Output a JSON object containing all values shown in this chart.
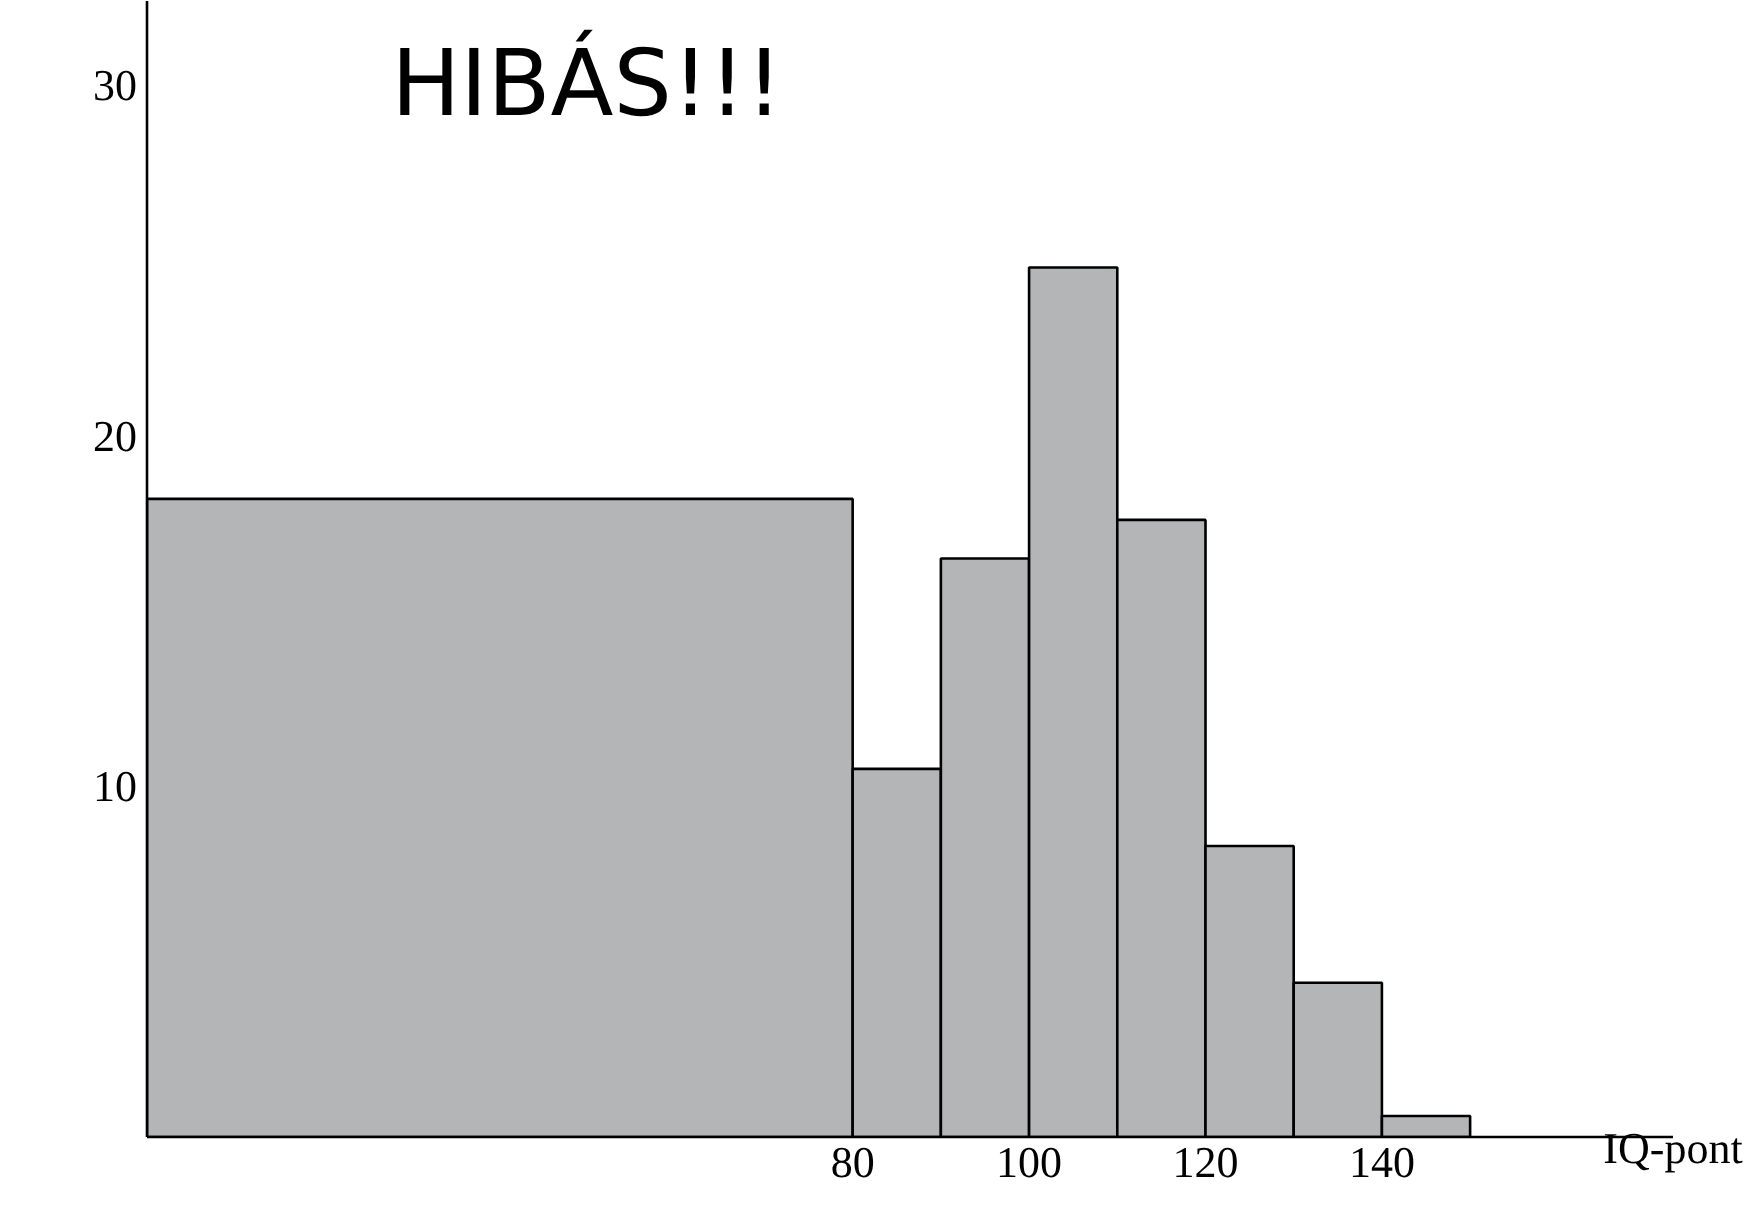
{
  "chart_data": {
    "type": "histogram",
    "title": "HIBÁS!!!",
    "xlabel": "IQ-pont",
    "bins": [
      0,
      80,
      90,
      100,
      110,
      120,
      130,
      140,
      150
    ],
    "values": [
      18.2,
      10.5,
      16.5,
      24.8,
      17.6,
      8.3,
      4.4,
      0.6
    ],
    "color": "#b3b5b6",
    "xlim": [
      0,
      173
    ],
    "ylim": [
      0,
      32.4
    ],
    "xticks": [
      80,
      100,
      120,
      140
    ],
    "yticks": [
      10,
      20,
      30
    ],
    "grid": false
  }
}
